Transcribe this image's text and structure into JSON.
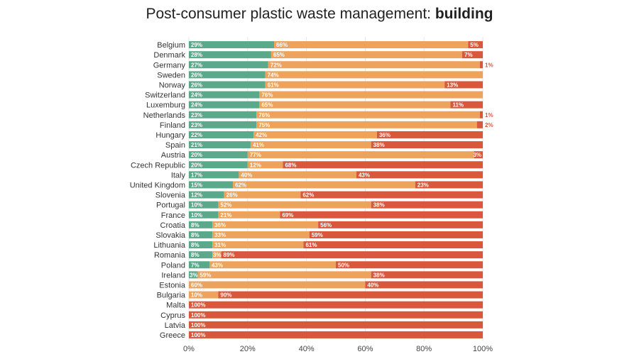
{
  "chart_data": {
    "type": "bar",
    "orientation": "horizontal",
    "stacked": true,
    "title": "Post-consumer plastic waste management: ",
    "title_bold": "building",
    "categories": [
      "Belgium",
      "Denmark",
      "Germany",
      "Sweden",
      "Norway",
      "Switzerland",
      "Luxemburg",
      "Netherlands",
      "Finland",
      "Hungary",
      "Spain",
      "Austria",
      "Czech Republic",
      "Italy",
      "United Kingdom",
      "Slovenia",
      "Portugal",
      "France",
      "Croatia",
      "Slovakia",
      "Lithuania",
      "Romania",
      "Poland",
      "Ireland",
      "Estonia",
      "Bulgaria",
      "Malta",
      "Cyprus",
      "Latvia",
      "Greece"
    ],
    "series": [
      {
        "color": "#5aa98a",
        "values": [
          29,
          28,
          27,
          26,
          26,
          24,
          24,
          23,
          23,
          22,
          21,
          20,
          20,
          17,
          15,
          12,
          10,
          10,
          8,
          8,
          8,
          8,
          7,
          3,
          0,
          0,
          0,
          0,
          0,
          0
        ]
      },
      {
        "color": "#eda35b",
        "values": [
          66,
          65,
          72,
          74,
          61,
          76,
          65,
          76,
          75,
          42,
          41,
          77,
          12,
          40,
          62,
          26,
          52,
          21,
          36,
          33,
          31,
          3,
          43,
          59,
          60,
          10,
          0,
          0,
          0,
          0
        ]
      },
      {
        "color": "#d9583b",
        "values": [
          5,
          7,
          1,
          0,
          13,
          0,
          11,
          1,
          2,
          36,
          38,
          3,
          68,
          43,
          23,
          62,
          38,
          69,
          56,
          59,
          61,
          89,
          50,
          38,
          40,
          90,
          100,
          100,
          100,
          100
        ]
      }
    ],
    "segment_labels": [
      [
        "29%",
        "66%",
        "5%"
      ],
      [
        "28%",
        "65%",
        "7%"
      ],
      [
        "27%",
        "72%",
        "1%"
      ],
      [
        "26%",
        "74%",
        ""
      ],
      [
        "26%",
        "61%",
        "13%"
      ],
      [
        "24%",
        "76%",
        ""
      ],
      [
        "24%",
        "65%",
        "11%"
      ],
      [
        "23%",
        "76%",
        "1%"
      ],
      [
        "23%",
        "75%",
        "2%"
      ],
      [
        "22%",
        "42%",
        "36%"
      ],
      [
        "21%",
        "41%",
        "38%"
      ],
      [
        "20%",
        "77%",
        "3%"
      ],
      [
        "20%",
        "12%",
        "68%"
      ],
      [
        "17%",
        "40%",
        "43%"
      ],
      [
        "15%",
        "62%",
        "23%"
      ],
      [
        "12%",
        "26%",
        "62%"
      ],
      [
        "10%",
        "52%",
        "38%"
      ],
      [
        "10%",
        "21%",
        "69%"
      ],
      [
        "8%",
        "36%",
        "56%"
      ],
      [
        "8%",
        "33%",
        "59%"
      ],
      [
        "8%",
        "31%",
        "61%"
      ],
      [
        "8%",
        "3%",
        "89%"
      ],
      [
        "7%",
        "43%",
        "50%"
      ],
      [
        "3%",
        "59%",
        "38%"
      ],
      [
        "",
        "60%",
        "40%"
      ],
      [
        "",
        "10%",
        "90%"
      ],
      [
        "",
        "",
        "100%"
      ],
      [
        "",
        "",
        "100%"
      ],
      [
        "",
        "",
        "100%"
      ],
      [
        "",
        "",
        "100%"
      ]
    ],
    "x_ticks": [
      "0%",
      "20%",
      "40%",
      "60%",
      "80%",
      "100%"
    ],
    "xlim": [
      0,
      100
    ],
    "grid": true
  }
}
